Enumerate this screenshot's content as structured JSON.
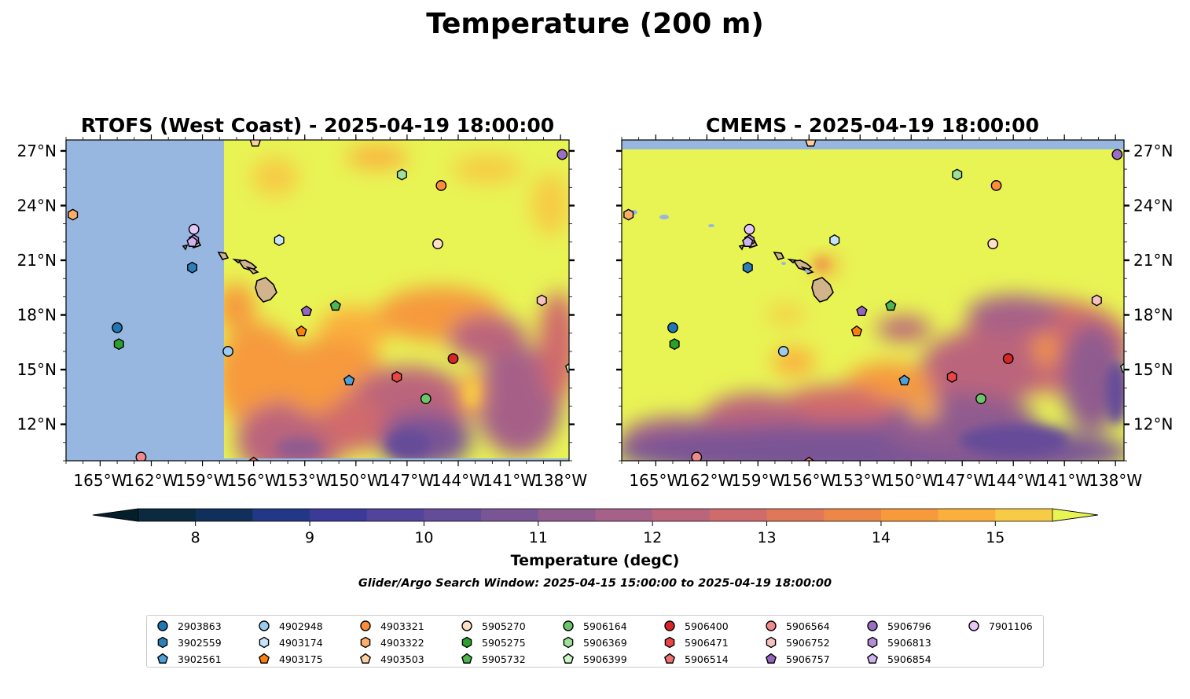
{
  "figure": {
    "title": "Temperature (200 m)",
    "search_window": "Glider/Argo Search Window: 2025-04-15 15:00:00 to 2025-04-19 18:00:00"
  },
  "chart_data": [
    {
      "type": "heatmap",
      "title": "RTOFS (West Coast) - 2025-04-19 18:00:00",
      "xlabel": "",
      "ylabel": "",
      "xlim": [
        -167,
        -137.5
      ],
      "ylim": [
        10,
        27.6
      ],
      "x_ticks": [
        "165°W",
        "162°W",
        "159°W",
        "156°W",
        "153°W",
        "150°W",
        "147°W",
        "144°W",
        "141°W",
        "138°W"
      ],
      "y_ticks": [
        "12°N",
        "15°N",
        "18°N",
        "21°N",
        "24°N",
        "27°N"
      ],
      "y_tick_side": "left",
      "model_domain_west_edge_lon": -157.7,
      "land_color": "#d2b48c",
      "ocean_nodata_color": "#97b6e0"
    },
    {
      "type": "heatmap",
      "title": "CMEMS - 2025-04-19 18:00:00",
      "xlabel": "",
      "ylabel": "",
      "xlim": [
        -167,
        -137.5
      ],
      "ylim": [
        10,
        27.6
      ],
      "x_ticks": [
        "165°W",
        "162°W",
        "159°W",
        "156°W",
        "153°W",
        "150°W",
        "147°W",
        "144°W",
        "141°W",
        "138°W"
      ],
      "y_ticks": [
        "12°N",
        "15°N",
        "18°N",
        "21°N",
        "24°N",
        "27°N"
      ],
      "y_tick_side": "right",
      "land_color": "#d2b48c",
      "ocean_nodata_color": "#97b6e0"
    }
  ],
  "colorbar": {
    "label": "Temperature (degC)",
    "min": 7.5,
    "max": 15.5,
    "step": 0.5,
    "ticks": [
      8,
      9,
      10,
      11,
      12,
      13,
      14,
      15
    ],
    "extend": "both",
    "colors": [
      "#0b2a3f",
      "#102f5a",
      "#223886",
      "#3b3a99",
      "#52449b",
      "#654c99",
      "#7a5595",
      "#905c8f",
      "#a66188",
      "#bb657c",
      "#d06b6c",
      "#e07759",
      "#ec8747",
      "#f69a3c",
      "#fbaf3c",
      "#f7cb45",
      "#e8f454"
    ]
  },
  "platforms": [
    {
      "id": "2903863",
      "marker": "circle",
      "color": "#1f77b4",
      "lon": -164.0,
      "lat": 17.3
    },
    {
      "id": "3902559",
      "marker": "hexagon",
      "color": "#2e7fb8",
      "lon": -159.6,
      "lat": 20.6
    },
    {
      "id": "3902561",
      "marker": "pentagon",
      "color": "#4f9fd8",
      "lon": -150.4,
      "lat": 14.4
    },
    {
      "id": "4902948",
      "marker": "circle",
      "color": "#9ccbee",
      "lon": -157.5,
      "lat": 16.0
    },
    {
      "id": "4903174",
      "marker": "hexagon",
      "color": "#c6e3fa",
      "lon": -154.5,
      "lat": 22.1
    },
    {
      "id": "4903175",
      "marker": "pentagon",
      "color": "#ff7f0e",
      "lon": -153.2,
      "lat": 17.1
    },
    {
      "id": "4903321",
      "marker": "circle",
      "color": "#fd8d3c",
      "lon": -145.0,
      "lat": 25.1
    },
    {
      "id": "4903322",
      "marker": "hexagon",
      "color": "#fdae6b",
      "lon": -166.6,
      "lat": 23.5
    },
    {
      "id": "4903503",
      "marker": "pentagon",
      "color": "#fdd0a2",
      "lon": -155.9,
      "lat": 27.5
    },
    {
      "id": "5905270",
      "marker": "circle",
      "color": "#fde0c5",
      "lon": -145.2,
      "lat": 21.9
    },
    {
      "id": "5905275",
      "marker": "hexagon",
      "color": "#2ca02c",
      "lon": -163.9,
      "lat": 16.4
    },
    {
      "id": "5905732",
      "marker": "pentagon",
      "color": "#4fb54f",
      "lon": -151.2,
      "lat": 18.5
    },
    {
      "id": "5906164",
      "marker": "circle",
      "color": "#6cc46c",
      "lon": -145.9,
      "lat": 13.4
    },
    {
      "id": "5906369",
      "marker": "hexagon",
      "color": "#9ee09a",
      "lon": -147.3,
      "lat": 25.7
    },
    {
      "id": "5906399",
      "marker": "pentagon",
      "color": "#cdf5c8",
      "lon": -137.4,
      "lat": 15.1
    },
    {
      "id": "5906400",
      "marker": "circle",
      "color": "#d62728",
      "lon": -144.3,
      "lat": 15.6
    },
    {
      "id": "5906471",
      "marker": "hexagon",
      "color": "#e84545",
      "lon": -147.6,
      "lat": 14.6
    },
    {
      "id": "5906514",
      "marker": "pentagon",
      "color": "#f07070",
      "lon": -156.0,
      "lat": 9.9
    },
    {
      "id": "5906564",
      "marker": "circle",
      "color": "#f08a8a",
      "lon": -162.6,
      "lat": 10.2
    },
    {
      "id": "5906752",
      "marker": "hexagon",
      "color": "#f7c1c1",
      "lon": -139.1,
      "lat": 18.8
    },
    {
      "id": "5906757",
      "marker": "pentagon",
      "color": "#9467bd",
      "lon": -152.9,
      "lat": 18.2
    },
    {
      "id": "5906796",
      "marker": "circle",
      "color": "#9a6ec4",
      "lon": -137.9,
      "lat": 26.8
    },
    {
      "id": "5906813",
      "marker": "hexagon",
      "color": "#b08fd8",
      "lon": -159.5,
      "lat": 22.1
    },
    {
      "id": "5906854",
      "marker": "pentagon",
      "color": "#cdb4ef",
      "lon": -159.6,
      "lat": 22.0
    },
    {
      "id": "7901106",
      "marker": "circle",
      "color": "#e5c6f7",
      "lon": -159.5,
      "lat": 22.7
    }
  ]
}
